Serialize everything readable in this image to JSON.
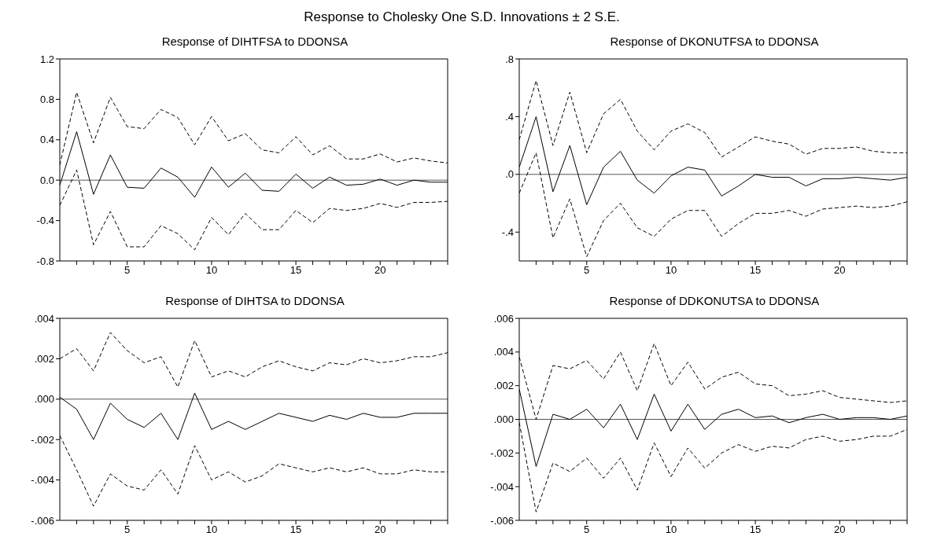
{
  "chart_data": [
    {
      "type": "line",
      "title": "Response of DIHTFSA to DDONSA",
      "annotations": [
        "Response to Cholesky One S.D. Innovations ± 2 S.E."
      ],
      "x": [
        1,
        2,
        3,
        4,
        5,
        6,
        7,
        8,
        9,
        10,
        11,
        12,
        13,
        14,
        15,
        16,
        17,
        18,
        19,
        20,
        21,
        22,
        23,
        24
      ],
      "xlim": [
        1,
        24
      ],
      "xticks": [
        {
          "value": 2,
          "label": null
        },
        {
          "value": 3,
          "label": null
        },
        {
          "value": 4,
          "label": null
        },
        5,
        {
          "value": 6,
          "label": null
        },
        {
          "value": 7,
          "label": null
        },
        {
          "value": 8,
          "label": null
        },
        {
          "value": 9,
          "label": null
        },
        10,
        {
          "value": 11,
          "label": null
        },
        {
          "value": 12,
          "label": null
        },
        {
          "value": 13,
          "label": null
        },
        {
          "value": 14,
          "label": null
        },
        15,
        {
          "value": 16,
          "label": null
        },
        {
          "value": 17,
          "label": null
        },
        {
          "value": 18,
          "label": null
        },
        {
          "value": 19,
          "label": null
        },
        20,
        {
          "value": 21,
          "label": null
        },
        {
          "value": 22,
          "label": null
        },
        {
          "value": 23,
          "label": null
        },
        {
          "value": 24,
          "label": null
        }
      ],
      "ylim": [
        -0.8,
        1.2
      ],
      "yticks": [
        -0.8,
        -0.4,
        {
          "value": 0,
          "label": "0.0"
        },
        0.4,
        0.8,
        1.2
      ],
      "grid": false,
      "legend": false,
      "marker": "none",
      "ref_lines": [
        {
          "axis": "y",
          "value": 0
        }
      ],
      "series": [
        {
          "color": "#000000",
          "line_style": "solid",
          "values": [
            -0.05,
            0.48,
            -0.14,
            0.25,
            -0.07,
            -0.08,
            0.12,
            0.03,
            -0.17,
            0.13,
            -0.07,
            0.07,
            -0.1,
            -0.11,
            0.06,
            -0.08,
            0.03,
            -0.05,
            -0.04,
            0.01,
            -0.05,
            0.0,
            -0.02,
            -0.02
          ]
        },
        {
          "color": "#000000",
          "line_style": "dashed",
          "values": [
            0.15,
            0.87,
            0.37,
            0.82,
            0.53,
            0.51,
            0.7,
            0.62,
            0.35,
            0.63,
            0.39,
            0.46,
            0.3,
            0.27,
            0.43,
            0.25,
            0.34,
            0.21,
            0.21,
            0.26,
            0.18,
            0.22,
            0.19,
            0.17
          ]
        },
        {
          "color": "#000000",
          "line_style": "dashed",
          "values": [
            -0.25,
            0.1,
            -0.64,
            -0.31,
            -0.66,
            -0.66,
            -0.45,
            -0.53,
            -0.69,
            -0.37,
            -0.54,
            -0.33,
            -0.49,
            -0.49,
            -0.3,
            -0.42,
            -0.28,
            -0.3,
            -0.28,
            -0.23,
            -0.27,
            -0.22,
            -0.22,
            -0.21
          ]
        }
      ]
    },
    {
      "type": "line",
      "title": "Response of DKONUTFSA to DDONSA",
      "x": [
        1,
        2,
        3,
        4,
        5,
        6,
        7,
        8,
        9,
        10,
        11,
        12,
        13,
        14,
        15,
        16,
        17,
        18,
        19,
        20,
        21,
        22,
        23,
        24
      ],
      "xlim": [
        1,
        24
      ],
      "xticks": [
        {
          "value": 2,
          "label": null
        },
        {
          "value": 3,
          "label": null
        },
        {
          "value": 4,
          "label": null
        },
        5,
        {
          "value": 6,
          "label": null
        },
        {
          "value": 7,
          "label": null
        },
        {
          "value": 8,
          "label": null
        },
        {
          "value": 9,
          "label": null
        },
        10,
        {
          "value": 11,
          "label": null
        },
        {
          "value": 12,
          "label": null
        },
        {
          "value": 13,
          "label": null
        },
        {
          "value": 14,
          "label": null
        },
        15,
        {
          "value": 16,
          "label": null
        },
        {
          "value": 17,
          "label": null
        },
        {
          "value": 18,
          "label": null
        },
        {
          "value": 19,
          "label": null
        },
        20,
        {
          "value": 21,
          "label": null
        },
        {
          "value": 22,
          "label": null
        },
        {
          "value": 23,
          "label": null
        },
        {
          "value": 24,
          "label": null
        }
      ],
      "ylim": [
        -0.6,
        0.8
      ],
      "yticks": [
        {
          "value": -0.4,
          "label": "-.4"
        },
        {
          "value": 0,
          "label": ".0"
        },
        {
          "value": 0.4,
          "label": ".4"
        },
        {
          "value": 0.8,
          "label": ".8"
        }
      ],
      "grid": false,
      "legend": false,
      "marker": "none",
      "ref_lines": [
        {
          "axis": "y",
          "value": 0
        }
      ],
      "series": [
        {
          "color": "#000000",
          "line_style": "solid",
          "values": [
            0.05,
            0.4,
            -0.12,
            0.2,
            -0.21,
            0.05,
            0.16,
            -0.04,
            -0.13,
            -0.01,
            0.05,
            0.03,
            -0.15,
            -0.08,
            0.0,
            -0.02,
            -0.02,
            -0.08,
            -0.03,
            -0.03,
            -0.02,
            -0.03,
            -0.04,
            -0.02
          ]
        },
        {
          "color": "#000000",
          "line_style": "dashed",
          "values": [
            0.24,
            0.65,
            0.2,
            0.57,
            0.15,
            0.42,
            0.52,
            0.3,
            0.17,
            0.3,
            0.35,
            0.29,
            0.12,
            0.19,
            0.26,
            0.23,
            0.21,
            0.14,
            0.18,
            0.18,
            0.19,
            0.16,
            0.15,
            0.15
          ]
        },
        {
          "color": "#000000",
          "line_style": "dashed",
          "values": [
            -0.13,
            0.15,
            -0.44,
            -0.17,
            -0.57,
            -0.32,
            -0.2,
            -0.37,
            -0.43,
            -0.31,
            -0.25,
            -0.25,
            -0.43,
            -0.34,
            -0.27,
            -0.27,
            -0.25,
            -0.29,
            -0.24,
            -0.23,
            -0.22,
            -0.23,
            -0.22,
            -0.19
          ]
        }
      ]
    },
    {
      "type": "line",
      "title": "Response of DIHTSA to DDONSA",
      "x": [
        1,
        2,
        3,
        4,
        5,
        6,
        7,
        8,
        9,
        10,
        11,
        12,
        13,
        14,
        15,
        16,
        17,
        18,
        19,
        20,
        21,
        22,
        23,
        24
      ],
      "xlim": [
        1,
        24
      ],
      "xticks": [
        {
          "value": 2,
          "label": null
        },
        {
          "value": 3,
          "label": null
        },
        {
          "value": 4,
          "label": null
        },
        5,
        {
          "value": 6,
          "label": null
        },
        {
          "value": 7,
          "label": null
        },
        {
          "value": 8,
          "label": null
        },
        {
          "value": 9,
          "label": null
        },
        10,
        {
          "value": 11,
          "label": null
        },
        {
          "value": 12,
          "label": null
        },
        {
          "value": 13,
          "label": null
        },
        {
          "value": 14,
          "label": null
        },
        15,
        {
          "value": 16,
          "label": null
        },
        {
          "value": 17,
          "label": null
        },
        {
          "value": 18,
          "label": null
        },
        {
          "value": 19,
          "label": null
        },
        20,
        {
          "value": 21,
          "label": null
        },
        {
          "value": 22,
          "label": null
        },
        {
          "value": 23,
          "label": null
        },
        {
          "value": 24,
          "label": null
        }
      ],
      "ylim": [
        -0.006,
        0.004
      ],
      "yticks": [
        {
          "value": -0.006,
          "label": "-.006"
        },
        {
          "value": -0.004,
          "label": "-.004"
        },
        {
          "value": -0.002,
          "label": "-.002"
        },
        {
          "value": 0,
          "label": ".000"
        },
        {
          "value": 0.002,
          "label": ".002"
        },
        {
          "value": 0.004,
          "label": ".004"
        }
      ],
      "grid": false,
      "legend": false,
      "marker": "none",
      "ref_lines": [
        {
          "axis": "y",
          "value": 0
        }
      ],
      "series": [
        {
          "color": "#000000",
          "line_style": "solid",
          "values": [
            0.0001,
            -0.0005,
            -0.002,
            -0.0002,
            -0.001,
            -0.0014,
            -0.0007,
            -0.002,
            0.0003,
            -0.0015,
            -0.0011,
            -0.0015,
            -0.0011,
            -0.0007,
            -0.0009,
            -0.0011,
            -0.0008,
            -0.001,
            -0.0007,
            -0.0009,
            -0.0009,
            -0.0007,
            -0.0007,
            -0.0007
          ]
        },
        {
          "color": "#000000",
          "line_style": "dashed",
          "values": [
            0.002,
            0.0025,
            0.0014,
            0.0033,
            0.0024,
            0.0018,
            0.0021,
            0.0006,
            0.0029,
            0.0011,
            0.0014,
            0.0011,
            0.0016,
            0.0019,
            0.0016,
            0.0014,
            0.0018,
            0.0017,
            0.002,
            0.0018,
            0.0019,
            0.0021,
            0.0021,
            0.0023
          ]
        },
        {
          "color": "#000000",
          "line_style": "dashed",
          "values": [
            -0.0018,
            -0.0035,
            -0.0053,
            -0.0037,
            -0.0043,
            -0.0045,
            -0.0035,
            -0.0047,
            -0.0023,
            -0.004,
            -0.0036,
            -0.0041,
            -0.0038,
            -0.0032,
            -0.0034,
            -0.0036,
            -0.0034,
            -0.0036,
            -0.0034,
            -0.0037,
            -0.0037,
            -0.0035,
            -0.0036,
            -0.0036
          ]
        }
      ]
    },
    {
      "type": "line",
      "title": "Response of DDKONUTSA to DDONSA",
      "x": [
        1,
        2,
        3,
        4,
        5,
        6,
        7,
        8,
        9,
        10,
        11,
        12,
        13,
        14,
        15,
        16,
        17,
        18,
        19,
        20,
        21,
        22,
        23,
        24
      ],
      "xlim": [
        1,
        24
      ],
      "xticks": [
        {
          "value": 2,
          "label": null
        },
        {
          "value": 3,
          "label": null
        },
        {
          "value": 4,
          "label": null
        },
        5,
        {
          "value": 6,
          "label": null
        },
        {
          "value": 7,
          "label": null
        },
        {
          "value": 8,
          "label": null
        },
        {
          "value": 9,
          "label": null
        },
        10,
        {
          "value": 11,
          "label": null
        },
        {
          "value": 12,
          "label": null
        },
        {
          "value": 13,
          "label": null
        },
        {
          "value": 14,
          "label": null
        },
        15,
        {
          "value": 16,
          "label": null
        },
        {
          "value": 17,
          "label": null
        },
        {
          "value": 18,
          "label": null
        },
        {
          "value": 19,
          "label": null
        },
        20,
        {
          "value": 21,
          "label": null
        },
        {
          "value": 22,
          "label": null
        },
        {
          "value": 23,
          "label": null
        },
        {
          "value": 24,
          "label": null
        }
      ],
      "ylim": [
        -0.006,
        0.006
      ],
      "yticks": [
        {
          "value": -0.006,
          "label": "-.006"
        },
        {
          "value": -0.004,
          "label": "-.004"
        },
        {
          "value": -0.002,
          "label": "-.002"
        },
        {
          "value": 0,
          "label": ".000"
        },
        {
          "value": 0.002,
          "label": ".002"
        },
        {
          "value": 0.004,
          "label": ".004"
        },
        {
          "value": 0.006,
          "label": ".006"
        }
      ],
      "grid": false,
      "legend": false,
      "marker": "none",
      "ref_lines": [
        {
          "axis": "y",
          "value": 0
        }
      ],
      "series": [
        {
          "color": "#000000",
          "line_style": "solid",
          "values": [
            0.0018,
            -0.0028,
            0.0003,
            0.0,
            0.0006,
            -0.0005,
            0.0009,
            -0.0012,
            0.0015,
            -0.0007,
            0.0009,
            -0.0006,
            0.0003,
            0.0006,
            0.0001,
            0.0002,
            -0.0002,
            0.0001,
            0.0003,
            0.0,
            0.0001,
            0.0001,
            0.0,
            0.0002
          ]
        },
        {
          "color": "#000000",
          "line_style": "dashed",
          "values": [
            0.0037,
            0.0,
            0.0032,
            0.003,
            0.0035,
            0.0024,
            0.004,
            0.0017,
            0.0045,
            0.002,
            0.0034,
            0.0018,
            0.0025,
            0.0028,
            0.0021,
            0.002,
            0.0014,
            0.0015,
            0.0017,
            0.0013,
            0.0012,
            0.0011,
            0.001,
            0.0011
          ]
        },
        {
          "color": "#000000",
          "line_style": "dashed",
          "values": [
            -0.0002,
            -0.0055,
            -0.0026,
            -0.0031,
            -0.0023,
            -0.0035,
            -0.0023,
            -0.0042,
            -0.0014,
            -0.0034,
            -0.0017,
            -0.0029,
            -0.002,
            -0.0015,
            -0.0019,
            -0.0016,
            -0.0017,
            -0.0012,
            -0.001,
            -0.0013,
            -0.0012,
            -0.001,
            -0.001,
            -0.0006
          ]
        }
      ]
    }
  ]
}
